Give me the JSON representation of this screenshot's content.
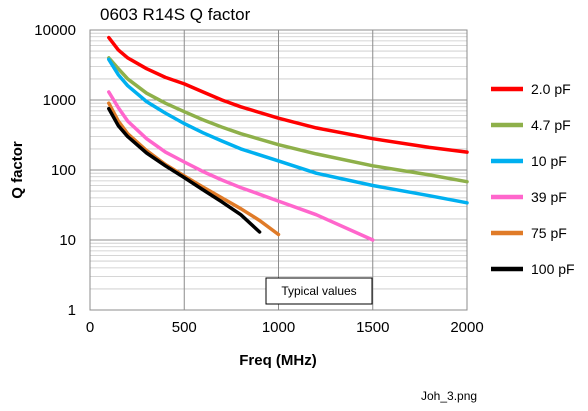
{
  "chart_data": {
    "type": "line",
    "title": "0603 R14S Q factor",
    "xlabel": "Freq (MHz)",
    "ylabel": "Q factor",
    "xlim": [
      0,
      2000
    ],
    "ylim": [
      1,
      10000
    ],
    "yscale": "log",
    "x_ticks": [
      "0",
      "500",
      "1000",
      "1500",
      "2000"
    ],
    "y_ticks": [
      "1",
      "10",
      "100",
      "1000",
      "10000"
    ],
    "grid": true,
    "legend_position": "right",
    "annotation": "Typical values",
    "series": [
      {
        "name": "2.0 pF",
        "color": "#ff0000",
        "x": [
          100,
          150,
          200,
          300,
          400,
          500,
          600,
          700,
          800,
          1000,
          1200,
          1500,
          1800,
          2000
        ],
        "y": [
          7800,
          5200,
          4000,
          2800,
          2100,
          1700,
          1300,
          1000,
          800,
          550,
          400,
          280,
          210,
          180
        ]
      },
      {
        "name": "4.7 pF",
        "color": "#8eb04a",
        "x": [
          100,
          150,
          200,
          300,
          400,
          500,
          600,
          700,
          800,
          1000,
          1200,
          1500,
          1800,
          2000
        ],
        "y": [
          4000,
          2800,
          2000,
          1250,
          900,
          680,
          520,
          410,
          330,
          230,
          170,
          115,
          85,
          68
        ]
      },
      {
        "name": "10 pF",
        "color": "#00b0f0",
        "x": [
          100,
          150,
          200,
          300,
          400,
          500,
          600,
          700,
          800,
          1000,
          1200,
          1500,
          1800,
          2000
        ],
        "y": [
          3800,
          2300,
          1600,
          950,
          650,
          460,
          340,
          260,
          200,
          135,
          90,
          60,
          43,
          34
        ]
      },
      {
        "name": "39 pF",
        "color": "#ff66cc",
        "x": [
          100,
          150,
          200,
          300,
          400,
          500,
          600,
          700,
          800,
          900,
          1000,
          1200,
          1500
        ],
        "y": [
          1300,
          780,
          500,
          280,
          180,
          130,
          95,
          72,
          56,
          45,
          36,
          23,
          10
        ]
      },
      {
        "name": "75 pF",
        "color": "#e07b28",
        "x": [
          100,
          150,
          200,
          300,
          400,
          500,
          600,
          700,
          800,
          900,
          1000
        ],
        "y": [
          900,
          500,
          330,
          190,
          120,
          82,
          57,
          40,
          28,
          19,
          12
        ]
      },
      {
        "name": "100 pF",
        "color": "#000000",
        "x": [
          100,
          150,
          200,
          300,
          400,
          500,
          600,
          700,
          800,
          900
        ],
        "y": [
          750,
          430,
          300,
          175,
          115,
          78,
          52,
          35,
          23,
          13
        ]
      }
    ]
  },
  "caption": "Joh_3.png"
}
